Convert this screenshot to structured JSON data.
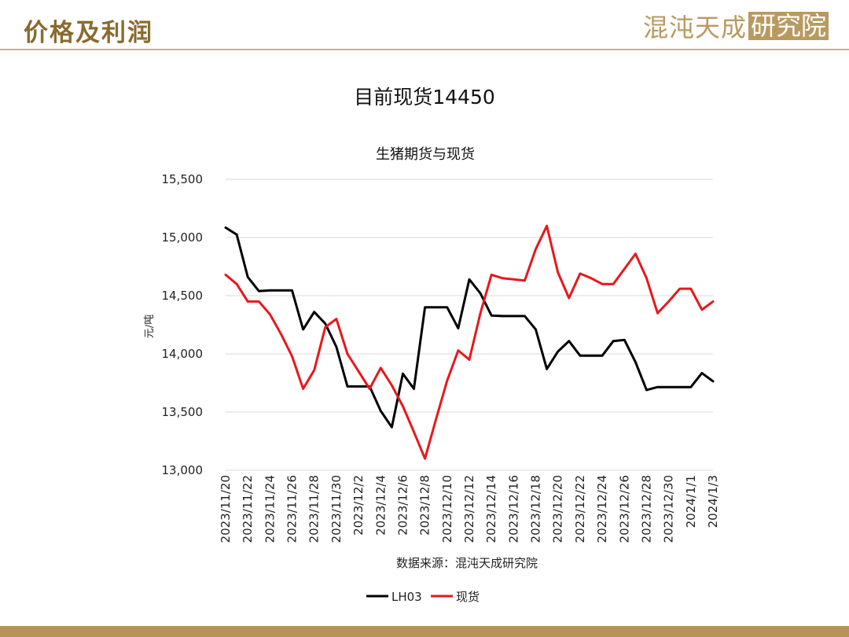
{
  "header": {
    "title": "价格及利润",
    "brand_name": "混沌天成",
    "brand_box": "研究院"
  },
  "slide_heading": "目前现货14450",
  "colors": {
    "accent": "#b89a60",
    "lh03": "#000000",
    "spot": "#e8171c",
    "grid": "#d9d9d9"
  },
  "chart_data": {
    "type": "line",
    "title": "生猪期货与现货",
    "xlabel": "",
    "ylabel": "元/吨",
    "ylim": [
      13000,
      15500
    ],
    "yticks": [
      13000,
      13500,
      14000,
      14500,
      15000,
      15500
    ],
    "ytick_labels": [
      "13,000",
      "13,500",
      "14,000",
      "14,500",
      "15,000",
      "15,500"
    ],
    "grid": true,
    "legend": "bottom",
    "x": [
      "2023/11/20",
      "2023/11/21",
      "2023/11/22",
      "2023/11/23",
      "2023/11/24",
      "2023/11/25",
      "2023/11/26",
      "2023/11/27",
      "2023/11/28",
      "2023/11/29",
      "2023/11/30",
      "2023/12/1",
      "2023/12/2",
      "2023/12/3",
      "2023/12/4",
      "2023/12/5",
      "2023/12/6",
      "2023/12/7",
      "2023/12/8",
      "2023/12/9",
      "2023/12/10",
      "2023/12/11",
      "2023/12/12",
      "2023/12/13",
      "2023/12/14",
      "2023/12/15",
      "2023/12/16",
      "2023/12/17",
      "2023/12/18",
      "2023/12/19",
      "2023/12/20",
      "2023/12/21",
      "2023/12/22",
      "2023/12/23",
      "2023/12/24",
      "2023/12/25",
      "2023/12/26",
      "2023/12/27",
      "2023/12/28",
      "2023/12/29",
      "2023/12/30",
      "2023/12/31",
      "2024/1/1",
      "2024/1/2",
      "2024/1/3"
    ],
    "tick_labels": [
      "2023/11/20",
      "2023/11/22",
      "2023/11/24",
      "2023/11/26",
      "2023/11/28",
      "2023/11/30",
      "2023/12/2",
      "2023/12/4",
      "2023/12/6",
      "2023/12/8",
      "2023/12/10",
      "2023/12/12",
      "2023/12/14",
      "2023/12/16",
      "2023/12/18",
      "2023/12/20",
      "2023/12/22",
      "2023/12/24",
      "2023/12/26",
      "2023/12/28",
      "2023/12/30",
      "2024/1/1",
      "2024/1/3"
    ],
    "series": [
      {
        "name": "LH03",
        "color": "#000000",
        "values": [
          15085,
          15025,
          14660,
          14540,
          14545,
          14545,
          14545,
          14210,
          14360,
          14260,
          14060,
          13720,
          13720,
          13720,
          13510,
          13370,
          13830,
          13700,
          14400,
          14400,
          14400,
          14220,
          14640,
          14520,
          14330,
          14325,
          14325,
          14325,
          14210,
          13870,
          14020,
          14110,
          13985,
          13985,
          13985,
          14110,
          14120,
          13930,
          13690,
          13715,
          13715,
          13715,
          13715,
          13835,
          13765
        ]
      },
      {
        "name": "现货",
        "color": "#e8171c",
        "values": [
          14680,
          14600,
          14450,
          14450,
          14340,
          14170,
          13980,
          13700,
          13860,
          14230,
          14300,
          14000,
          13850,
          13700,
          13880,
          13730,
          13550,
          13330,
          13100,
          13440,
          13770,
          14030,
          13950,
          14350,
          14680,
          14650,
          14640,
          14630,
          14900,
          15100,
          14700,
          14480,
          14690,
          14650,
          14600,
          14600,
          14730,
          14860,
          14650,
          14350,
          14450,
          14560,
          14560,
          14380,
          14450
        ]
      }
    ],
    "source": "数据来源：混沌天成研究院"
  }
}
